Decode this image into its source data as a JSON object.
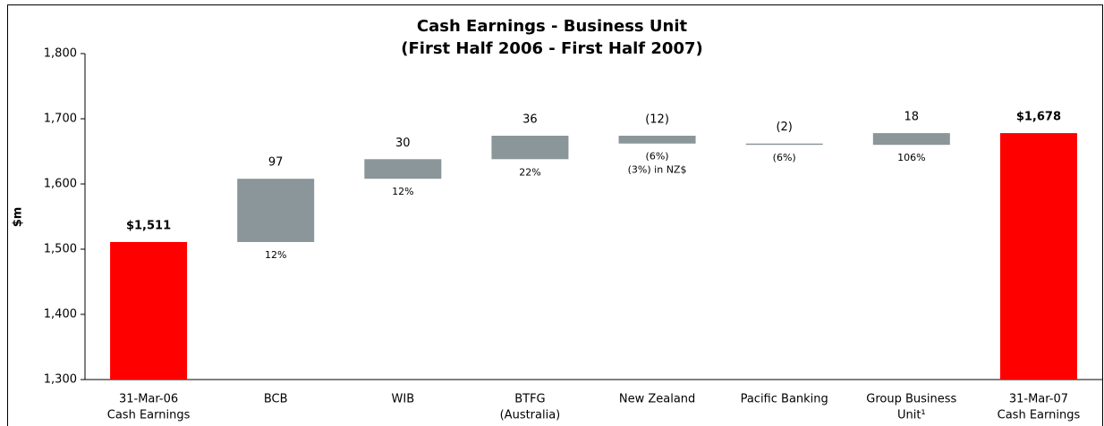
{
  "chart_data": {
    "type": "waterfall",
    "title": "Cash Earnings - Business Unit",
    "subtitle": "(First Half 2006 -  First Half 2007)",
    "y_label": "$m",
    "categories": [
      [
        "31-Mar-06",
        "Cash Earnings"
      ],
      [
        "BCB"
      ],
      [
        "WIB"
      ],
      [
        "BTFG",
        "(Australia)"
      ],
      [
        "New Zealand"
      ],
      [
        "Pacific Banking"
      ],
      [
        "Group Business",
        "Unit¹"
      ],
      [
        "31-Mar-07",
        "Cash Earnings"
      ]
    ],
    "kinds": [
      "total",
      "delta",
      "delta",
      "delta",
      "delta",
      "delta",
      "delta",
      "total"
    ],
    "values": [
      1511,
      97,
      30,
      36,
      -12,
      -2,
      18,
      1678
    ],
    "value_labels": [
      "$1,511",
      "97",
      "30",
      "36",
      "(12)",
      "(2)",
      "18",
      "$1,678"
    ],
    "notes": [
      null,
      [
        "12%"
      ],
      [
        "12%"
      ],
      [
        "22%"
      ],
      [
        "(6%)",
        "(3%) in NZ$"
      ],
      [
        "(6%)"
      ],
      [
        "106%"
      ],
      null
    ],
    "total_color": "#ff0000",
    "delta_color": "#8a9699",
    "ylim": [
      1300,
      1800
    ],
    "yticks": [
      {
        "value": 1300,
        "label": "1,300"
      },
      {
        "value": 1400,
        "label": "1,400"
      },
      {
        "value": 1500,
        "label": "1,500"
      },
      {
        "value": 1600,
        "label": "1,600"
      },
      {
        "value": 1700,
        "label": "1,700"
      },
      {
        "value": 1800,
        "label": "1,800"
      }
    ],
    "grid": false
  }
}
